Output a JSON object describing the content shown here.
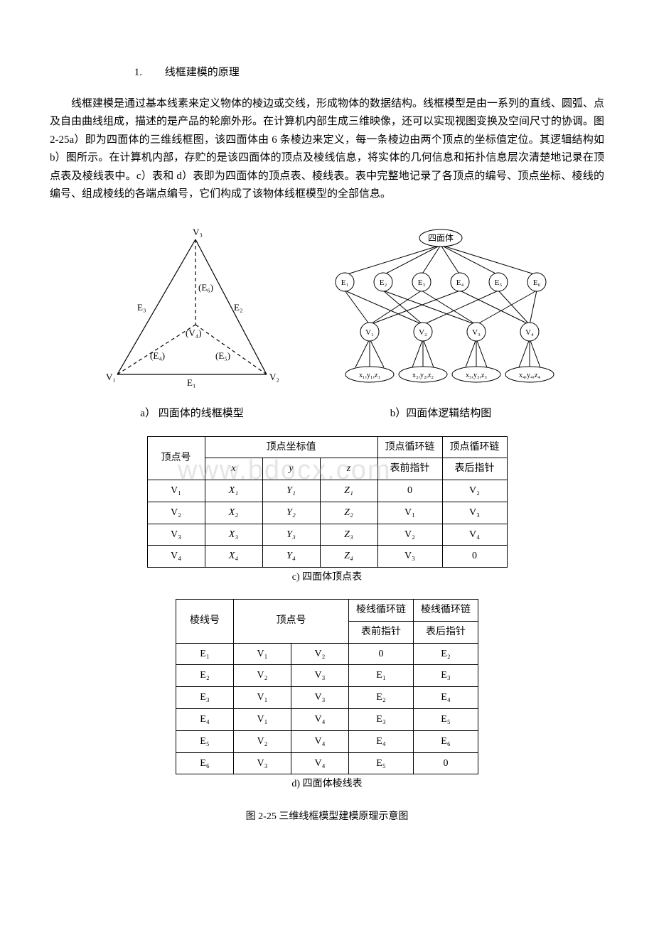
{
  "heading": {
    "num": "1.",
    "title": "线框建模的原理"
  },
  "paragraph": "线框建模是通过基本线素来定义物体的棱边或交线，形成物体的数据结构。线框模型是由一系列的直线、圆弧、点及自由曲线组成，描述的是产品的轮廓外形。在计算机内部生成三维映像，还可以实现视图变换及空间尺寸的协调。图 2-25a）即为四面体的三维线框图，该四面体由 6 条棱边来定义，每一条棱边由两个顶点的坐标值定位。其逻辑结构如 b）图所示。在计算机内部，存贮的是该四面体的顶点及棱线信息，将实体的几何信息和拓扑信息层次清楚地记录在顶点表及棱线表中。c）表和 d）表即为四面体的顶点表、棱线表。表中完整地记录了各顶点的编号、顶点坐标、棱线的编号、组成棱线的各端点编号，它们构成了该物体线框模型的全部信息。",
  "fig_a_caption": "a）  四面体的线框模型",
  "fig_b_caption": "b）四面体逻辑结构图",
  "table_c": {
    "caption": "c)  四面体顶点表",
    "head": {
      "vertex_no": "顶点号",
      "coord": "顶点坐标值",
      "x": "x",
      "y": "y",
      "z": "z",
      "prev": "顶点循环链",
      "prev2": "表前指针",
      "next": "顶点循环链",
      "next2": "表后指针"
    },
    "rows": [
      {
        "v": "V₁",
        "x": "X₁",
        "y": "Y₁",
        "z": "Z₁",
        "p": "0",
        "n": "V₂"
      },
      {
        "v": "V₂",
        "x": "X₂",
        "y": "Y₂",
        "z": "Z₂",
        "p": "V₁",
        "n": "V₃"
      },
      {
        "v": "V₃",
        "x": "X₃",
        "y": "Y₃",
        "z": "Z₃",
        "p": "V₂",
        "n": "V₄"
      },
      {
        "v": "V₄",
        "x": "X₄",
        "y": "Y₄",
        "z": "Z₄",
        "p": "V₃",
        "n": "0"
      }
    ]
  },
  "table_d": {
    "caption": "d)  四面体棱线表",
    "head": {
      "edge_no": "棱线号",
      "vertex_no": "顶点号",
      "prev": "棱线循环链",
      "prev2": "表前指针",
      "next": "棱线循环链",
      "next2": "表后指针"
    },
    "rows": [
      {
        "e": "E₁",
        "v1": "V₁",
        "v2": "V₂",
        "p": "0",
        "n": "E₂"
      },
      {
        "e": "E₂",
        "v1": "V₂",
        "v2": "V₃",
        "p": "E₁",
        "n": "E₃"
      },
      {
        "e": "E₃",
        "v1": "V₁",
        "v2": "V₃",
        "p": "E₂",
        "n": "E₄"
      },
      {
        "e": "E₄",
        "v1": "V₁",
        "v2": "V₄",
        "p": "E₃",
        "n": "E₅"
      },
      {
        "e": "E₅",
        "v1": "V₂",
        "v2": "V₄",
        "p": "E₄",
        "n": "E₆"
      },
      {
        "e": "E₆",
        "v1": "V₃",
        "v2": "V₄",
        "p": "E₅",
        "n": "0"
      }
    ]
  },
  "main_caption": "图 2-25 三维线框模型建模原理示意图",
  "watermark": "www.bdocx.com",
  "fig_a": {
    "V1": "V₁",
    "V2": "V₂",
    "V3": "V₃",
    "V4": "V₄",
    "E1": "E₁",
    "E2": "E₂",
    "E3": "E₃",
    "E4": "(E₄)",
    "E5": "(E₅)",
    "E6": "(E₆)",
    "V4label": "(V₄)"
  },
  "fig_b": {
    "root": "四面体",
    "E": [
      "E₁",
      "E₂",
      "E₃",
      "E₄",
      "E₅",
      "E₆"
    ],
    "V": [
      "V₁",
      "V₂",
      "V₃",
      "V₄"
    ],
    "C": [
      "x₁,y₁,z₁",
      "x₂,y₂,z₂",
      "x₃,y₃,z₃",
      "x₄,y₄,z₄"
    ]
  }
}
